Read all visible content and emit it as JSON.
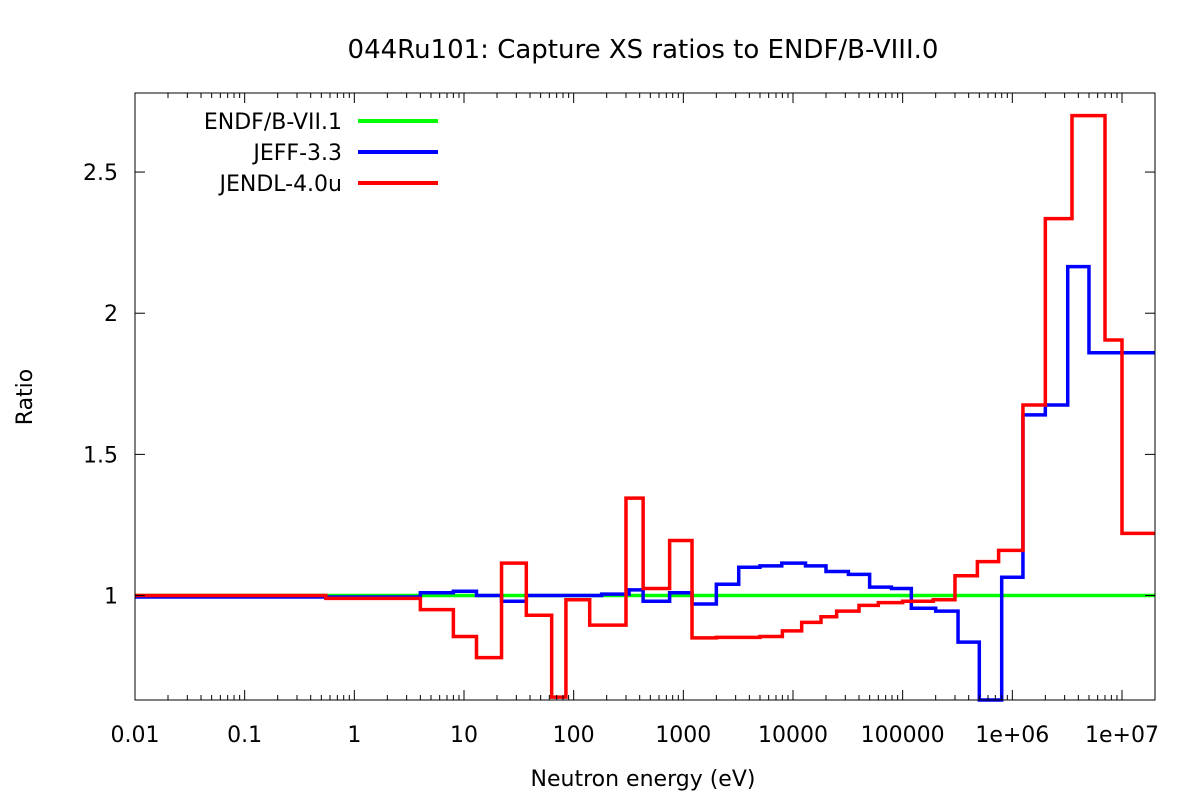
{
  "chart_data": {
    "type": "line",
    "title": "044Ru101: Capture XS ratios to ENDF/B-VIII.0",
    "xlabel": "Neutron energy (eV)",
    "ylabel": "Ratio",
    "xscale": "log",
    "xlim": [
      0.01,
      20000000
    ],
    "ylim": [
      0.63,
      2.78
    ],
    "xticks": [
      {
        "value": 0.01,
        "label": "0.01"
      },
      {
        "value": 0.1,
        "label": "0.1"
      },
      {
        "value": 1,
        "label": "1"
      },
      {
        "value": 10,
        "label": "10"
      },
      {
        "value": 100,
        "label": "100"
      },
      {
        "value": 1000,
        "label": "1000"
      },
      {
        "value": 10000,
        "label": "10000"
      },
      {
        "value": 100000,
        "label": "100000"
      },
      {
        "value": 1000000,
        "label": "1e+06"
      },
      {
        "value": 10000000,
        "label": "1e+07"
      }
    ],
    "yticks": [
      {
        "value": 1,
        "label": "1"
      },
      {
        "value": 1.5,
        "label": "1.5"
      },
      {
        "value": 2,
        "label": "2"
      },
      {
        "value": 2.5,
        "label": "2.5"
      }
    ],
    "grid": false,
    "legend_position": "top-left",
    "series": [
      {
        "name": "ENDF/B-VII.1",
        "color": "#00ff00",
        "x": [
          0.01,
          20000000
        ],
        "y": [
          1.0,
          1.0
        ]
      },
      {
        "name": "JEFF-3.3",
        "color": "#0000ff",
        "x": [
          0.01,
          0.55,
          4,
          8,
          13,
          22,
          37,
          63,
          100,
          180,
          320,
          430,
          750,
          1200,
          2000,
          3200,
          5000,
          7900,
          13000,
          20000,
          32000,
          50000,
          79000,
          120000,
          200000,
          320000,
          500000,
          800000,
          1250000,
          2000000,
          3200000,
          5000000,
          7900000,
          10000000,
          20000000
        ],
        "y": [
          0.995,
          0.995,
          1.01,
          1.015,
          1.0,
          0.98,
          1.0,
          1.0,
          1.0,
          1.005,
          1.02,
          0.98,
          1.01,
          0.97,
          1.04,
          1.1,
          1.105,
          1.115,
          1.105,
          1.085,
          1.075,
          1.03,
          1.025,
          0.955,
          0.945,
          0.835,
          0.63,
          1.065,
          1.64,
          1.675,
          2.165,
          1.86,
          1.86,
          1.86,
          1.86
        ]
      },
      {
        "name": "JENDL-4.0u",
        "color": "#ff0000",
        "x": [
          0.01,
          0.55,
          4,
          8,
          13,
          22,
          37,
          63,
          85,
          140,
          300,
          430,
          750,
          1200,
          2000,
          5000,
          8000,
          12000,
          18000,
          25000,
          40000,
          60000,
          100000,
          190000,
          300000,
          480000,
          750000,
          1250000,
          2000000,
          3500000,
          7000000,
          10000000,
          20000000
        ],
        "y": [
          1.0,
          0.99,
          0.95,
          0.855,
          0.78,
          1.115,
          0.93,
          0.64,
          0.985,
          0.895,
          1.345,
          1.025,
          1.195,
          0.85,
          0.852,
          0.855,
          0.875,
          0.905,
          0.925,
          0.945,
          0.965,
          0.975,
          0.98,
          0.985,
          1.07,
          1.12,
          1.16,
          1.675,
          2.335,
          2.7,
          1.905,
          1.22,
          1.22
        ]
      }
    ]
  }
}
